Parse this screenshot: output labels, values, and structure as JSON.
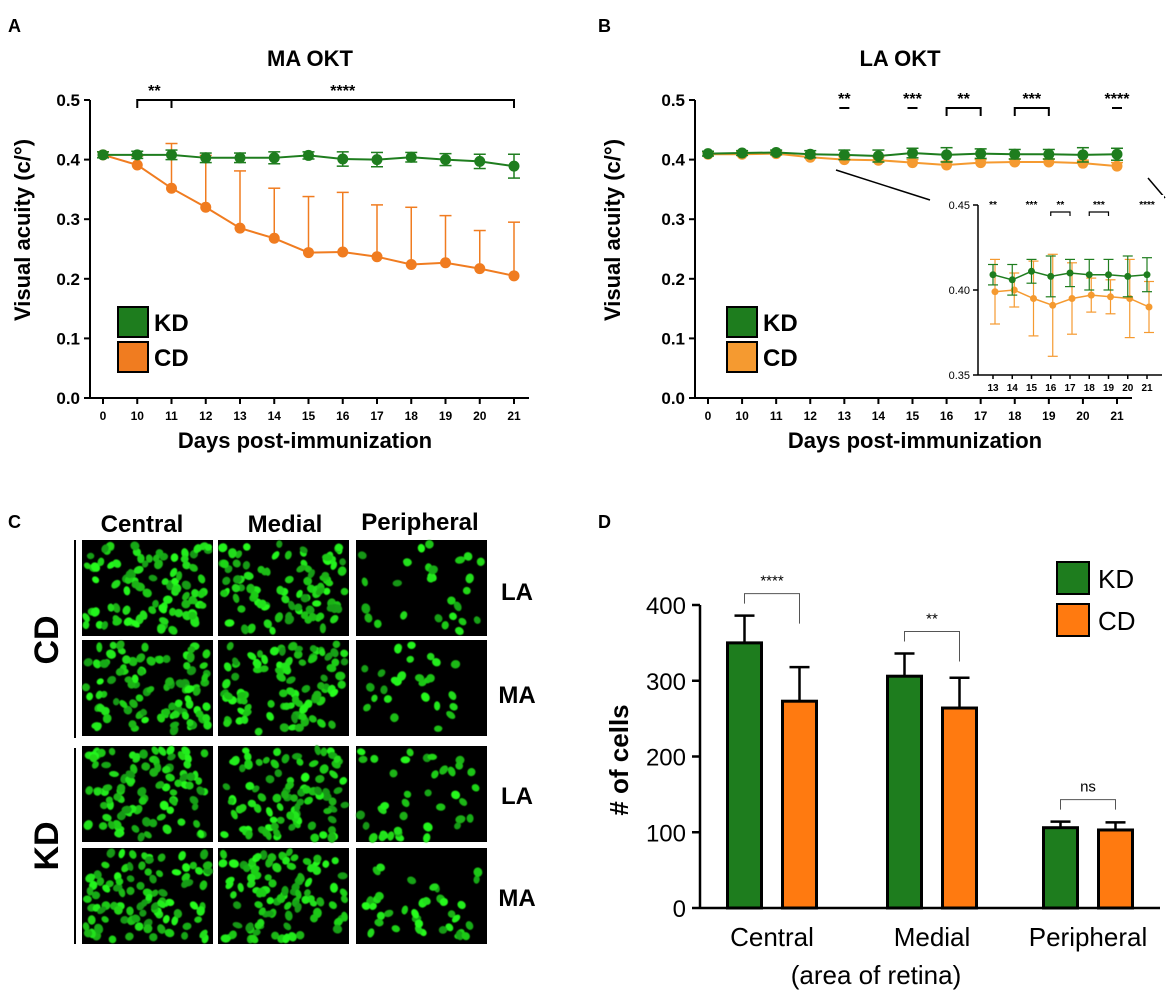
{
  "panels": {
    "A": "A",
    "B": "B",
    "C": "C",
    "D": "D"
  },
  "colors": {
    "kd": "#1e7d1e",
    "cd_a": "#f07c20",
    "cd_b": "#f59a30",
    "cd_d": "#ff7a10",
    "axis": "#000000"
  },
  "chart_data": [
    {
      "id": "A",
      "type": "line",
      "title": "MA OKT",
      "xlabel": "Days post-immunization",
      "ylabel": "Visual acuity (c/°)",
      "categories": [
        "0",
        "10",
        "11",
        "12",
        "13",
        "14",
        "15",
        "16",
        "17",
        "18",
        "19",
        "20",
        "21"
      ],
      "ylim": [
        0,
        0.5
      ],
      "yticks": [
        "0.0",
        "0.1",
        "0.2",
        "0.3",
        "0.4",
        "0.5"
      ],
      "series": [
        {
          "name": "KD",
          "values": [
            0.408,
            0.408,
            0.408,
            0.403,
            0.403,
            0.403,
            0.407,
            0.401,
            0.4,
            0.404,
            0.4,
            0.397,
            0.389
          ],
          "err": [
            0.005,
            0.006,
            0.008,
            0.008,
            0.008,
            0.01,
            0.006,
            0.012,
            0.012,
            0.008,
            0.01,
            0.012,
            0.02
          ]
        },
        {
          "name": "CD",
          "values": [
            0.408,
            0.391,
            0.352,
            0.32,
            0.285,
            0.268,
            0.244,
            0.245,
            0.237,
            0.224,
            0.227,
            0.217,
            0.205
          ],
          "err": [
            0.005,
            0.015,
            0.075,
            0.087,
            0.096,
            0.084,
            0.094,
            0.1,
            0.087,
            0.096,
            0.079,
            0.064,
            0.09
          ]
        }
      ],
      "annotations": [
        {
          "text": "**",
          "from": "10",
          "to": "11"
        },
        {
          "text": "****",
          "from": "11",
          "to": "21"
        }
      ],
      "legend": [
        "KD",
        "CD"
      ]
    },
    {
      "id": "B",
      "type": "line",
      "title": "LA OKT",
      "xlabel": "Days post-immunization",
      "ylabel": "Visual acuity (c/°)",
      "categories": [
        "0",
        "10",
        "11",
        "12",
        "13",
        "14",
        "15",
        "16",
        "17",
        "18",
        "19",
        "20",
        "21"
      ],
      "ylim": [
        0,
        0.5
      ],
      "yticks": [
        "0.0",
        "0.1",
        "0.2",
        "0.3",
        "0.4",
        "0.5"
      ],
      "series": [
        {
          "name": "KD",
          "values": [
            0.41,
            0.411,
            0.412,
            0.409,
            0.408,
            0.406,
            0.411,
            0.408,
            0.41,
            0.409,
            0.409,
            0.408,
            0.409
          ],
          "err": [
            0.004,
            0.004,
            0.004,
            0.006,
            0.008,
            0.01,
            0.008,
            0.012,
            0.008,
            0.008,
            0.008,
            0.012,
            0.01
          ]
        },
        {
          "name": "CD",
          "values": [
            0.409,
            0.409,
            0.41,
            0.404,
            0.4,
            0.399,
            0.395,
            0.391,
            0.395,
            0.396,
            0.396,
            0.394,
            0.389
          ],
          "err": [
            0.004,
            0.004,
            0.004,
            0.006,
            0.005,
            0.005,
            0.005,
            0.006,
            0.005,
            0.005,
            0.005,
            0.005,
            0.006
          ]
        }
      ],
      "annotations": [
        {
          "text": "**",
          "from": "13",
          "to": "13"
        },
        {
          "text": "***",
          "from": "15",
          "to": "15"
        },
        {
          "text": "**",
          "from": "16",
          "to": "17"
        },
        {
          "text": "***",
          "from": "18",
          "to": "19"
        },
        {
          "text": "****",
          "from": "21",
          "to": "21"
        }
      ],
      "legend": [
        "KD",
        "CD"
      ],
      "inset": {
        "categories": [
          "13",
          "14",
          "15",
          "16",
          "17",
          "18",
          "19",
          "20",
          "21"
        ],
        "ylim": [
          0.35,
          0.45
        ],
        "yticks": [
          "0.35",
          "0.40",
          "0.45"
        ],
        "series": [
          {
            "name": "KD",
            "values": [
              0.409,
              0.406,
              0.411,
              0.408,
              0.41,
              0.409,
              0.409,
              0.408,
              0.409
            ],
            "err": [
              0.006,
              0.009,
              0.007,
              0.012,
              0.008,
              0.009,
              0.009,
              0.012,
              0.01
            ]
          },
          {
            "name": "CD",
            "values": [
              0.399,
              0.4,
              0.395,
              0.391,
              0.395,
              0.397,
              0.396,
              0.395,
              0.39
            ],
            "err": [
              0.019,
              0.01,
              0.022,
              0.03,
              0.021,
              0.01,
              0.01,
              0.023,
              0.015
            ]
          }
        ],
        "annotations": [
          {
            "text": "**",
            "from": "13",
            "to": "13"
          },
          {
            "text": "***",
            "from": "15",
            "to": "15"
          },
          {
            "text": "**",
            "from": "16",
            "to": "17"
          },
          {
            "text": "***",
            "from": "18",
            "to": "19"
          },
          {
            "text": "****",
            "from": "21",
            "to": "21"
          }
        ]
      }
    },
    {
      "id": "D",
      "type": "bar",
      "xlabel": "(area of retina)",
      "ylabel": "# of cells",
      "categories": [
        "Central",
        "Medial",
        "Peripheral"
      ],
      "ylim": [
        0,
        400
      ],
      "yticks": [
        "0",
        "100",
        "200",
        "300",
        "400"
      ],
      "series": [
        {
          "name": "KD",
          "values": [
            350,
            306,
            106
          ],
          "err": [
            36,
            30,
            8
          ]
        },
        {
          "name": "CD",
          "values": [
            273,
            264,
            103
          ],
          "err": [
            45,
            40,
            10
          ]
        }
      ],
      "annotations": [
        {
          "text": "****",
          "category": "Central"
        },
        {
          "text": "**",
          "category": "Medial"
        },
        {
          "text": "ns",
          "category": "Peripheral"
        }
      ],
      "legend": [
        "KD",
        "CD"
      ]
    }
  ],
  "micrograph": {
    "columns": [
      "Central",
      "Medial",
      "Peripheral"
    ],
    "groups": [
      {
        "name": "CD",
        "rows": [
          "LA",
          "MA"
        ]
      },
      {
        "name": "KD",
        "rows": [
          "LA",
          "MA"
        ]
      }
    ]
  }
}
